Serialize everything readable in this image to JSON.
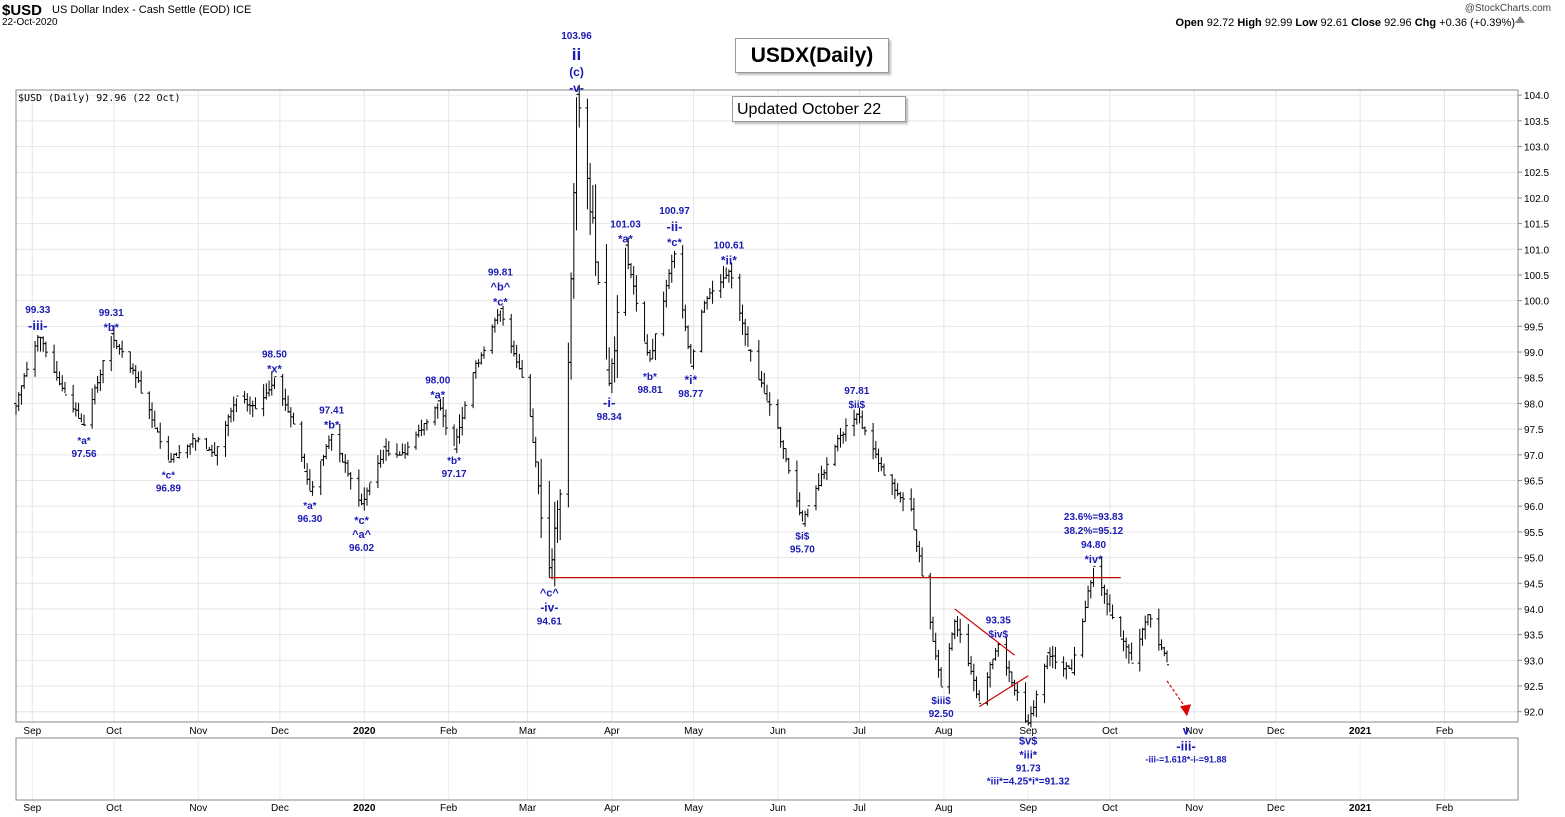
{
  "header": {
    "symbol": "$USD",
    "description": "US Dollar Index - Cash Settle (EOD) ICE",
    "date": "22-Oct-2020",
    "ohlc": {
      "open_label": "Open",
      "open": "92.72",
      "high_label": "High",
      "high": "92.99",
      "low_label": "Low",
      "low": "92.61",
      "close_label": "Close",
      "close": "92.96",
      "chg_label": "Chg",
      "chg": "+0.36 (+0.39%)"
    },
    "brand": "@StockCharts.com"
  },
  "legend": "$USD (Daily) 92.96 (22 Oct)",
  "title_box": "USDX(Daily)",
  "updated_box": "Updated October 22",
  "chart_data": {
    "type": "ohlc",
    "ylim": [
      91.8,
      104.1
    ],
    "y_ticks": [
      "92.0",
      "92.5",
      "93.0",
      "93.5",
      "94.0",
      "94.5",
      "95.0",
      "95.5",
      "96.0",
      "96.5",
      "97.0",
      "97.5",
      "98.0",
      "98.5",
      "99.0",
      "99.5",
      "100.0",
      "100.5",
      "101.0",
      "101.5",
      "102.0",
      "102.5",
      "103.0",
      "103.5",
      "104.0"
    ],
    "x_range": [
      "2019-08-26",
      "2021-02-28"
    ],
    "x_ticks": [
      {
        "date": "2019-09-01",
        "label": "Sep",
        "bold": false
      },
      {
        "date": "2019-10-01",
        "label": "Oct",
        "bold": false
      },
      {
        "date": "2019-11-01",
        "label": "Nov",
        "bold": false
      },
      {
        "date": "2019-12-01",
        "label": "Dec",
        "bold": false
      },
      {
        "date": "2020-01-01",
        "label": "2020",
        "bold": true
      },
      {
        "date": "2020-02-01",
        "label": "Feb",
        "bold": false
      },
      {
        "date": "2020-03-01",
        "label": "Mar",
        "bold": false
      },
      {
        "date": "2020-04-01",
        "label": "Apr",
        "bold": false
      },
      {
        "date": "2020-05-01",
        "label": "May",
        "bold": false
      },
      {
        "date": "2020-06-01",
        "label": "Jun",
        "bold": false
      },
      {
        "date": "2020-07-01",
        "label": "Jul",
        "bold": false
      },
      {
        "date": "2020-08-01",
        "label": "Aug",
        "bold": false
      },
      {
        "date": "2020-09-01",
        "label": "Sep",
        "bold": false
      },
      {
        "date": "2020-10-01",
        "label": "Oct",
        "bold": false
      },
      {
        "date": "2020-11-01",
        "label": "Nov",
        "bold": false
      },
      {
        "date": "2020-12-01",
        "label": "Dec",
        "bold": false
      },
      {
        "date": "2021-01-01",
        "label": "2021",
        "bold": true
      },
      {
        "date": "2021-02-01",
        "label": "Feb",
        "bold": false
      }
    ],
    "price_path": [
      [
        "2019-08-26",
        98.0
      ],
      [
        "2019-09-03",
        99.33
      ],
      [
        "2019-09-13",
        98.2
      ],
      [
        "2019-09-20",
        97.56
      ],
      [
        "2019-09-30",
        99.31
      ],
      [
        "2019-10-10",
        98.4
      ],
      [
        "2019-10-21",
        96.89
      ],
      [
        "2019-10-31",
        97.3
      ],
      [
        "2019-11-07",
        97.0
      ],
      [
        "2019-11-15",
        98.1
      ],
      [
        "2019-11-22",
        97.9
      ],
      [
        "2019-11-29",
        98.5
      ],
      [
        "2019-12-06",
        97.6
      ],
      [
        "2019-12-12",
        96.3
      ],
      [
        "2019-12-20",
        97.41
      ],
      [
        "2019-12-31",
        96.02
      ],
      [
        "2020-01-08",
        97.1
      ],
      [
        "2020-01-15",
        97.0
      ],
      [
        "2020-01-28",
        98.0
      ],
      [
        "2020-02-03",
        97.17
      ],
      [
        "2020-02-10",
        98.6
      ],
      [
        "2020-02-20",
        99.81
      ],
      [
        "2020-03-01",
        98.2
      ],
      [
        "2020-03-09",
        94.61
      ],
      [
        "2020-03-15",
        97.0
      ],
      [
        "2020-03-19",
        103.96
      ],
      [
        "2020-03-25",
        101.5
      ],
      [
        "2020-03-31",
        98.34
      ],
      [
        "2020-04-06",
        101.03
      ],
      [
        "2020-04-13",
        99.2
      ],
      [
        "2020-04-15",
        98.81
      ],
      [
        "2020-04-24",
        100.97
      ],
      [
        "2020-04-30",
        98.77
      ],
      [
        "2020-05-05",
        100.0
      ],
      [
        "2020-05-14",
        100.61
      ],
      [
        "2020-05-21",
        99.1
      ],
      [
        "2020-06-01",
        97.5
      ],
      [
        "2020-06-10",
        95.7
      ],
      [
        "2020-06-22",
        97.2
      ],
      [
        "2020-06-30",
        97.81
      ],
      [
        "2020-07-10",
        96.6
      ],
      [
        "2020-07-20",
        95.9
      ],
      [
        "2020-07-31",
        92.5
      ],
      [
        "2020-08-05",
        93.8
      ],
      [
        "2020-08-14",
        92.2
      ],
      [
        "2020-08-21",
        93.35
      ],
      [
        "2020-09-01",
        91.73
      ],
      [
        "2020-09-08",
        93.1
      ],
      [
        "2020-09-17",
        92.8
      ],
      [
        "2020-09-25",
        94.8
      ],
      [
        "2020-10-02",
        93.8
      ],
      [
        "2020-10-09",
        93.0
      ],
      [
        "2020-10-15",
        93.9
      ],
      [
        "2020-10-22",
        92.96
      ]
    ],
    "support_line": {
      "value": 94.61,
      "from": "2020-03-09",
      "to": "2020-10-05",
      "color": "#cc0000"
    },
    "wedge_lines": [
      {
        "from": [
          "2020-08-05",
          94.0
        ],
        "to": [
          "2020-08-27",
          93.1
        ]
      },
      {
        "from": [
          "2020-08-14",
          92.1
        ],
        "to": [
          "2020-09-01",
          92.7
        ]
      }
    ],
    "projection_arrow": {
      "from": [
        "2020-10-22",
        92.6
      ],
      "to": [
        "2020-10-29",
        91.95
      ],
      "color": "#dd0000"
    },
    "annotations": [
      {
        "date": "2019-09-03",
        "price": 99.33,
        "pos": "above",
        "lines": [
          "99.33",
          "-iii-"
        ],
        "sizes": [
          10,
          13
        ]
      },
      {
        "date": "2019-09-20",
        "price": 97.56,
        "pos": "below",
        "lines": [
          "*a*",
          "97.56"
        ],
        "sizes": [
          10,
          10
        ]
      },
      {
        "date": "2019-09-30",
        "price": 99.31,
        "pos": "above",
        "lines": [
          "99.31",
          "*b*"
        ],
        "sizes": [
          10,
          11
        ]
      },
      {
        "date": "2019-10-21",
        "price": 96.89,
        "pos": "below",
        "lines": [
          "*c*",
          "96.89"
        ],
        "sizes": [
          10,
          10
        ]
      },
      {
        "date": "2019-11-29",
        "price": 98.5,
        "pos": "above",
        "lines": [
          "98.50",
          "*x*"
        ],
        "sizes": [
          10,
          11
        ]
      },
      {
        "date": "2019-12-12",
        "price": 96.3,
        "pos": "below",
        "lines": [
          "*a*",
          "96.30"
        ],
        "sizes": [
          10,
          10
        ]
      },
      {
        "date": "2019-12-20",
        "price": 97.41,
        "pos": "above",
        "lines": [
          "97.41",
          "*b*"
        ],
        "sizes": [
          10,
          11
        ]
      },
      {
        "date": "2019-12-31",
        "price": 96.02,
        "pos": "below",
        "lines": [
          "*c*",
          "^a^",
          "96.02"
        ],
        "sizes": [
          11,
          11,
          10
        ]
      },
      {
        "date": "2020-01-28",
        "price": 98.0,
        "pos": "above",
        "lines": [
          "98.00",
          "*a*"
        ],
        "sizes": [
          10,
          11
        ]
      },
      {
        "date": "2020-02-03",
        "price": 97.17,
        "pos": "below",
        "lines": [
          "*b*",
          "97.17"
        ],
        "sizes": [
          10,
          10
        ]
      },
      {
        "date": "2020-02-20",
        "price": 99.81,
        "pos": "above",
        "lines": [
          "99.81",
          "^b^",
          "*c*"
        ],
        "sizes": [
          10,
          11,
          11
        ]
      },
      {
        "date": "2020-03-09",
        "price": 94.61,
        "pos": "below",
        "lines": [
          "^c^",
          "-iv-",
          "94.61"
        ],
        "sizes": [
          11,
          12,
          10
        ]
      },
      {
        "date": "2020-03-19",
        "price": 103.96,
        "pos": "above",
        "lines": [
          "103.96",
          "ii",
          "(c)",
          "-v-"
        ],
        "sizes": [
          10,
          17,
          12,
          12
        ]
      },
      {
        "date": "2020-03-31",
        "price": 98.34,
        "pos": "below",
        "lines": [
          "-i-",
          "98.34"
        ],
        "sizes": [
          13,
          10
        ]
      },
      {
        "date": "2020-04-06",
        "price": 101.03,
        "pos": "above",
        "lines": [
          "101.03",
          "*a*"
        ],
        "sizes": [
          10,
          11
        ]
      },
      {
        "date": "2020-04-15",
        "price": 98.81,
        "pos": "below",
        "lines": [
          "*b*",
          "98.81"
        ],
        "sizes": [
          10,
          10
        ]
      },
      {
        "date": "2020-04-24",
        "price": 100.97,
        "pos": "above",
        "lines": [
          "100.97",
          "-ii-",
          "*c*"
        ],
        "sizes": [
          10,
          13,
          11
        ]
      },
      {
        "date": "2020-04-30",
        "price": 98.77,
        "pos": "below",
        "lines": [
          "*i*",
          "98.77"
        ],
        "sizes": [
          12,
          10
        ]
      },
      {
        "date": "2020-05-14",
        "price": 100.61,
        "pos": "above",
        "lines": [
          "100.61",
          "*ii*"
        ],
        "sizes": [
          10,
          12
        ]
      },
      {
        "date": "2020-06-10",
        "price": 95.7,
        "pos": "below",
        "lines": [
          "$i$",
          "95.70"
        ],
        "sizes": [
          10,
          10
        ]
      },
      {
        "date": "2020-06-30",
        "price": 97.81,
        "pos": "above",
        "lines": [
          "97.81",
          "$ii$"
        ],
        "sizes": [
          10,
          10
        ]
      },
      {
        "date": "2020-07-31",
        "price": 92.5,
        "pos": "below",
        "lines": [
          "$iii$",
          "92.50"
        ],
        "sizes": [
          10,
          10
        ]
      },
      {
        "date": "2020-08-21",
        "price": 93.35,
        "pos": "above",
        "lines": [
          "93.35",
          "$iv$"
        ],
        "sizes": [
          10,
          10
        ]
      },
      {
        "date": "2020-09-01",
        "price": 91.73,
        "pos": "below",
        "lines": [
          "$v$",
          "*iii*",
          "91.73",
          "*iii*=4.25*i*=91.32"
        ],
        "sizes": [
          11,
          11,
          10,
          10
        ]
      },
      {
        "date": "2020-09-25",
        "price": 94.8,
        "pos": "above",
        "lines": [
          "23.6%=93.83",
          "38.2%=95.12",
          "94.80",
          "*iv*"
        ],
        "sizes": [
          10,
          10,
          10,
          11
        ]
      },
      {
        "date": "2020-10-29",
        "price": 91.95,
        "pos": "below",
        "lines": [
          "v",
          "-iii-",
          "-iii-=1.618*-i-=91.88"
        ],
        "sizes": [
          12,
          13,
          9
        ]
      }
    ]
  }
}
